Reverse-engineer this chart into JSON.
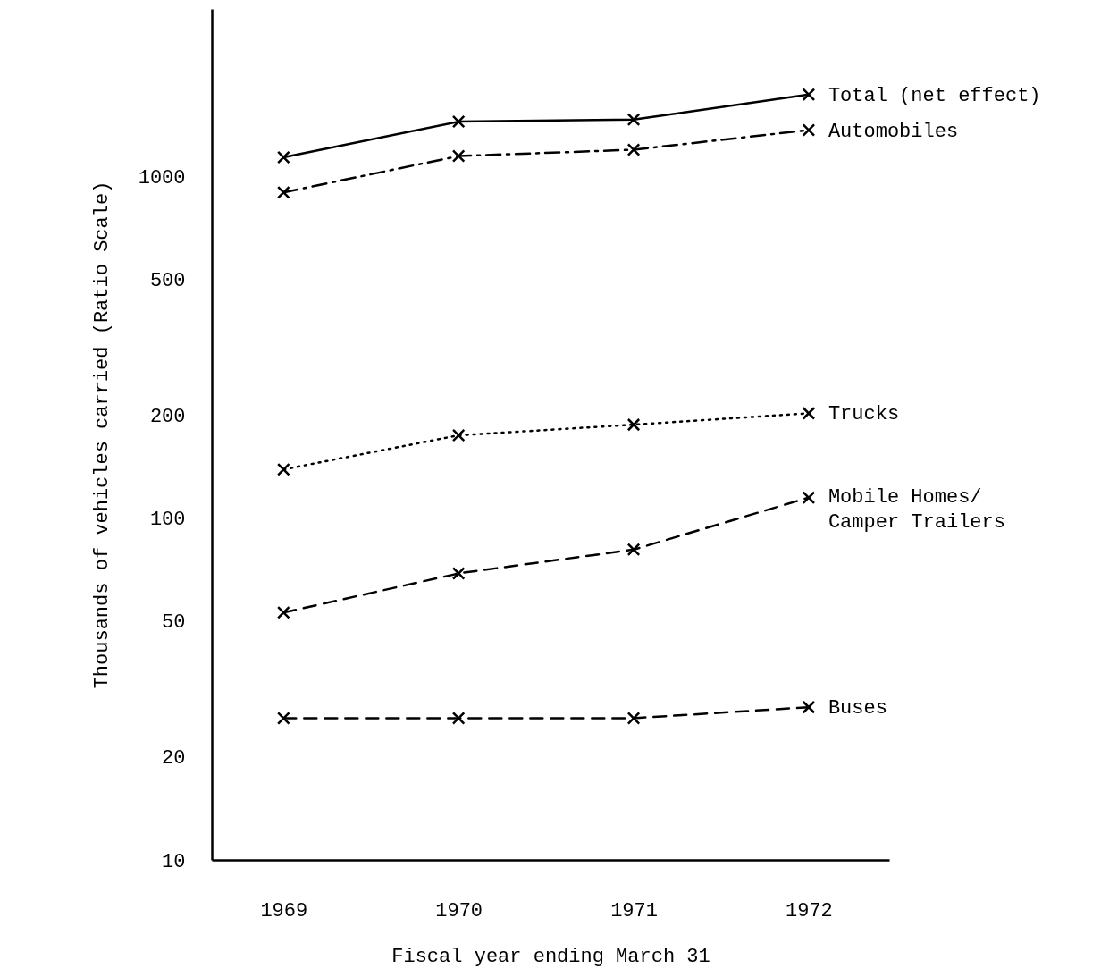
{
  "chart_data": {
    "type": "line",
    "xlabel": "Fiscal year ending March 31",
    "ylabel": "Thousands of vehicles carried (Ratio Scale)",
    "x": [
      1969,
      1970,
      1971,
      1972
    ],
    "xlim": [
      1968.59,
      1972.46
    ],
    "xticks": [
      1969,
      1970,
      1971,
      1972
    ],
    "ylim": [
      10,
      3100
    ],
    "yticks": [
      10,
      20,
      50,
      100,
      200,
      500,
      1000
    ],
    "log": true,
    "grid": false,
    "marker": "cross",
    "series": [
      {
        "name": "Total (net effect)",
        "color": "#000000",
        "line_style": "solid",
        "values": [
          1140,
          1450,
          1470,
          1740
        ]
      },
      {
        "name": "Automobiles",
        "color": "#000000",
        "line_style": "dashdot",
        "values": [
          900,
          1150,
          1200,
          1370
        ]
      },
      {
        "name": "Trucks",
        "color": "#000000",
        "line_style": "dotted",
        "values": [
          139,
          175,
          188,
          203
        ]
      },
      {
        "name": "Mobile Homes/ Camper Trailers",
        "color": "#000000",
        "line_style": "dashed",
        "values": [
          53,
          69,
          81,
          115
        ]
      },
      {
        "name": "Buses",
        "color": "#000000",
        "line_style": "dashed",
        "values": [
          26,
          26,
          26,
          28
        ]
      }
    ]
  }
}
